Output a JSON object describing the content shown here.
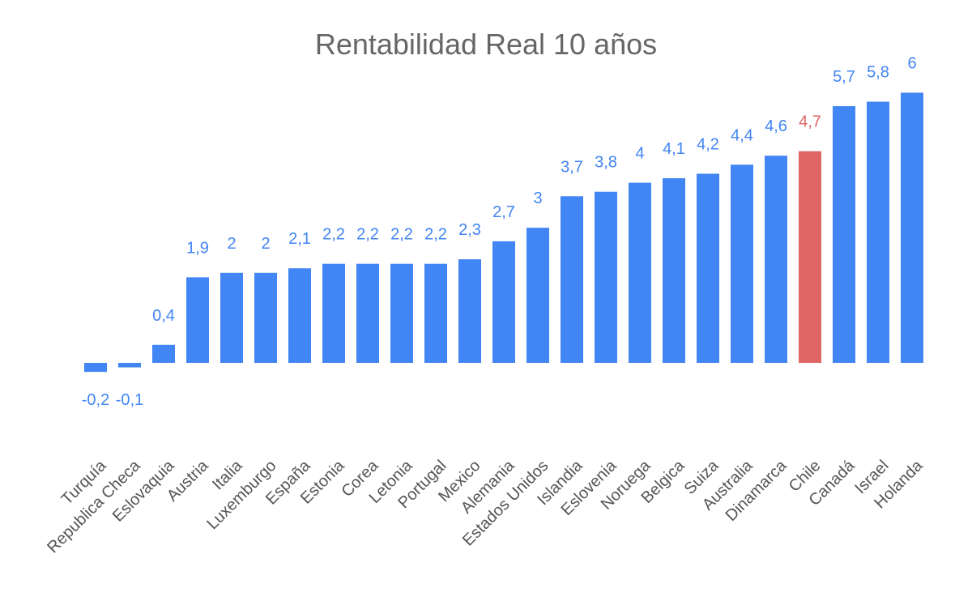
{
  "chart_data": {
    "type": "bar",
    "title": "Rentabilidad Real 10 años",
    "xlabel": "",
    "ylabel": "",
    "ylim": [
      -0.2,
      6
    ],
    "categories": [
      "Turquía",
      "Republica Checa",
      "Eslovaquia",
      "Austria",
      "Italia",
      "Luxemburgo",
      "España",
      "Estonia",
      "Corea",
      "Letonia",
      "Portugal",
      "Mexico",
      "Alemania",
      "Estados Unidos",
      "Islandia",
      "Eslovenia",
      "Noruega",
      "Belgica",
      "Suiza",
      "Australia",
      "Dinamarca",
      "Chile",
      "Canadá",
      "Israel",
      "Holanda"
    ],
    "values": [
      -0.2,
      -0.1,
      0.4,
      1.9,
      2,
      2,
      2.1,
      2.2,
      2.2,
      2.2,
      2.2,
      2.3,
      2.7,
      3,
      3.7,
      3.8,
      4,
      4.1,
      4.2,
      4.4,
      4.6,
      4.7,
      5.7,
      5.8,
      6
    ],
    "data_labels": [
      "-0,2",
      "-0,1",
      "0,4",
      "1,9",
      "2",
      "2",
      "2,1",
      "2,2",
      "2,2",
      "2,2",
      "2,2",
      "2,3",
      "2,7",
      "3",
      "3,7",
      "3,8",
      "4",
      "4,1",
      "4,2",
      "4,4",
      "4,6",
      "4,7",
      "5,7",
      "5,8",
      "6"
    ],
    "colors": {
      "default": "#4285f4",
      "highlight": "#e06666"
    },
    "highlight_category": "Chile",
    "grid": false,
    "legend": "none"
  }
}
